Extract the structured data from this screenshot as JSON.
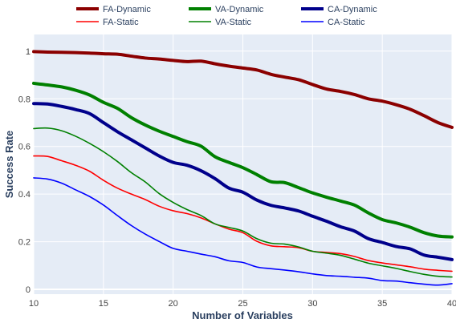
{
  "chart_data": {
    "type": "line",
    "xlabel": "Number of Variables",
    "ylabel": "Success Rate",
    "xlim": [
      10,
      40
    ],
    "ylim": [
      -0.02,
      1.07
    ],
    "x_ticks": [
      10,
      15,
      20,
      25,
      30,
      35,
      40
    ],
    "y_ticks": [
      0,
      0.2,
      0.4,
      0.6,
      0.8,
      1
    ],
    "grid": true,
    "background": "#e5ecf6",
    "legend_position": "top-center",
    "x": [
      10,
      11,
      12,
      13,
      14,
      15,
      16,
      17,
      18,
      19,
      20,
      21,
      22,
      23,
      24,
      25,
      26,
      27,
      28,
      29,
      30,
      31,
      32,
      33,
      34,
      35,
      36,
      37,
      38,
      39,
      40
    ],
    "series": [
      {
        "name": "FA-Dynamic",
        "color": "#8b0000",
        "width": "thick",
        "values": [
          0.998,
          0.996,
          0.995,
          0.994,
          0.992,
          0.989,
          0.987,
          0.979,
          0.971,
          0.967,
          0.961,
          0.956,
          0.958,
          0.947,
          0.937,
          0.929,
          0.921,
          0.903,
          0.891,
          0.88,
          0.86,
          0.841,
          0.831,
          0.818,
          0.8,
          0.79,
          0.775,
          0.756,
          0.729,
          0.7,
          0.68
        ]
      },
      {
        "name": "VA-Dynamic",
        "color": "#008000",
        "width": "thick",
        "values": [
          0.865,
          0.858,
          0.85,
          0.836,
          0.816,
          0.785,
          0.76,
          0.721,
          0.69,
          0.664,
          0.642,
          0.62,
          0.601,
          0.557,
          0.533,
          0.511,
          0.482,
          0.452,
          0.448,
          0.427,
          0.405,
          0.387,
          0.371,
          0.354,
          0.321,
          0.293,
          0.279,
          0.261,
          0.238,
          0.224,
          0.22
        ]
      },
      {
        "name": "CA-Dynamic",
        "color": "#00008b",
        "width": "thick",
        "values": [
          0.78,
          0.778,
          0.768,
          0.755,
          0.738,
          0.7,
          0.662,
          0.628,
          0.594,
          0.56,
          0.533,
          0.521,
          0.498,
          0.465,
          0.425,
          0.408,
          0.375,
          0.353,
          0.342,
          0.329,
          0.307,
          0.286,
          0.263,
          0.245,
          0.213,
          0.197,
          0.18,
          0.17,
          0.144,
          0.135,
          0.125
        ]
      },
      {
        "name": "FA-Static",
        "color": "#ff0000",
        "width": "thin",
        "values": [
          0.56,
          0.558,
          0.54,
          0.521,
          0.496,
          0.458,
          0.425,
          0.4,
          0.377,
          0.349,
          0.33,
          0.318,
          0.3,
          0.275,
          0.253,
          0.238,
          0.202,
          0.183,
          0.179,
          0.175,
          0.16,
          0.155,
          0.15,
          0.138,
          0.121,
          0.111,
          0.103,
          0.095,
          0.085,
          0.08,
          0.076
        ]
      },
      {
        "name": "VA-Static",
        "color": "#008000",
        "width": "thin",
        "values": [
          0.675,
          0.677,
          0.666,
          0.643,
          0.613,
          0.578,
          0.537,
          0.49,
          0.451,
          0.402,
          0.365,
          0.335,
          0.31,
          0.275,
          0.26,
          0.245,
          0.213,
          0.194,
          0.19,
          0.178,
          0.16,
          0.152,
          0.143,
          0.127,
          0.11,
          0.099,
          0.088,
          0.075,
          0.063,
          0.055,
          0.052
        ]
      },
      {
        "name": "CA-Static",
        "color": "#0000ff",
        "width": "thin",
        "values": [
          0.468,
          0.463,
          0.446,
          0.418,
          0.39,
          0.354,
          0.31,
          0.268,
          0.232,
          0.201,
          0.172,
          0.16,
          0.148,
          0.137,
          0.12,
          0.113,
          0.094,
          0.087,
          0.081,
          0.074,
          0.065,
          0.058,
          0.055,
          0.051,
          0.047,
          0.037,
          0.035,
          0.028,
          0.022,
          0.018,
          0.024
        ]
      }
    ]
  }
}
